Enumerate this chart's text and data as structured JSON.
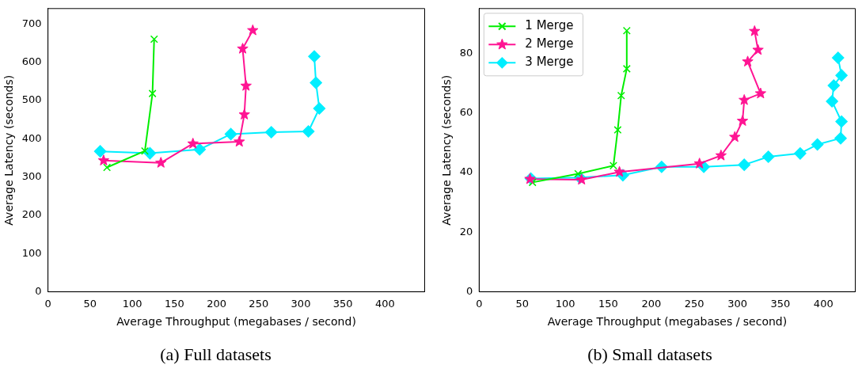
{
  "chart_data": [
    {
      "type": "line",
      "title": "(a) Full datasets",
      "xlabel": "Average Throughput (megabases / second)",
      "ylabel": "Average Latency (seconds)",
      "xlim": [
        0,
        447
      ],
      "ylim": [
        0,
        740
      ],
      "xticks": [
        0,
        50,
        100,
        150,
        200,
        250,
        300,
        350,
        400
      ],
      "yticks": [
        0,
        100,
        200,
        300,
        400,
        500,
        600,
        700
      ],
      "grid": false,
      "legend": false,
      "series": [
        {
          "color": "#00ee00",
          "marker": "cross",
          "x": [
            70,
            115,
            124,
            126
          ],
          "values": [
            325,
            368,
            518,
            660
          ]
        },
        {
          "color": "#ff1493",
          "marker": "star",
          "x": [
            66,
            134,
            172,
            227,
            233,
            235,
            231,
            243
          ],
          "values": [
            343,
            337,
            387,
            392,
            463,
            538,
            635,
            683
          ]
        },
        {
          "color": "#00eeff",
          "marker": "diamond",
          "x": [
            62,
            121,
            180,
            217,
            265,
            309,
            322,
            318,
            316
          ],
          "values": [
            367,
            362,
            372,
            412,
            417,
            419,
            479,
            546,
            615
          ]
        }
      ]
    },
    {
      "type": "line",
      "title": "(b) Small datasets",
      "xlabel": "Average Throughput (megabases / second)",
      "ylabel": "Average Latency (seconds)",
      "xlim": [
        0,
        437
      ],
      "ylim": [
        0,
        95
      ],
      "xticks": [
        0,
        50,
        100,
        150,
        200,
        250,
        300,
        350,
        400
      ],
      "yticks": [
        0,
        20,
        40,
        60,
        80
      ],
      "grid": false,
      "legend": "top left",
      "series": [
        {
          "name": "1 Merge",
          "color": "#00ee00",
          "marker": "cross",
          "x": [
            62,
            115,
            156,
            161,
            165,
            171.5,
            171.5
          ],
          "values": [
            36.7,
            39.6,
            42.3,
            54.3,
            65.8,
            74.8,
            87.6
          ]
        },
        {
          "name": "2 Merge",
          "color": "#ff1493",
          "marker": "star",
          "x": [
            59,
            119,
            163,
            256,
            281,
            297,
            306,
            308,
            327,
            312,
            324,
            320
          ],
          "values": [
            37.8,
            37.6,
            40.2,
            43,
            45.7,
            51.9,
            57.3,
            64.3,
            66.5,
            77.2,
            81.1,
            87.4
          ]
        },
        {
          "name": "3 Merge",
          "color": "#00eeff",
          "marker": "diamond",
          "x": [
            60,
            117,
            167,
            212,
            261,
            308,
            336,
            373,
            393,
            420,
            421,
            410,
            412,
            421,
            417
          ],
          "values": [
            38,
            38.3,
            39.1,
            41.9,
            41.9,
            42.6,
            45.3,
            46.4,
            49.4,
            51.5,
            57.1,
            63.9,
            69.2,
            72.6,
            78.5
          ]
        }
      ]
    }
  ]
}
